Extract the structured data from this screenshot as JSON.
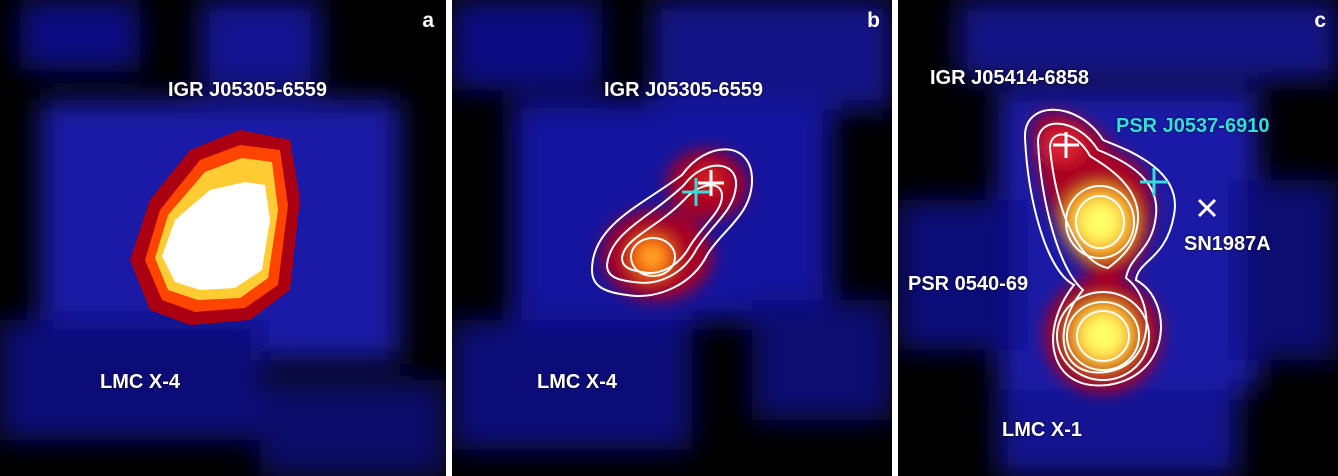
{
  "panels": [
    {
      "letter": "a",
      "labels": {
        "source_top": "IGR J05305-6559",
        "source_bottom": "LMC X-4"
      }
    },
    {
      "letter": "b",
      "labels": {
        "source_top": "IGR J05305-6559",
        "source_bottom": "LMC X-4"
      }
    },
    {
      "letter": "c",
      "labels": {
        "source_top": "IGR J05414-6858",
        "pulsar_cyan": "PSR  J0537-6910",
        "supernova": "SN1987A",
        "pulsar_white": "PSR 0540-69",
        "source_bottom": "LMC X-1"
      }
    }
  ],
  "colors": {
    "background": "#000000",
    "emission_low": "#1a1acc",
    "emission_mid": "#cc1111",
    "emission_high": "#ffff66",
    "emission_peak": "#ffffff",
    "contour": "#ffffff",
    "cyan_marker": "#33dddd",
    "white_marker": "#ffffff"
  },
  "markers": {
    "cyan_cross": "+",
    "white_cross": "+",
    "x_mark": "×"
  }
}
